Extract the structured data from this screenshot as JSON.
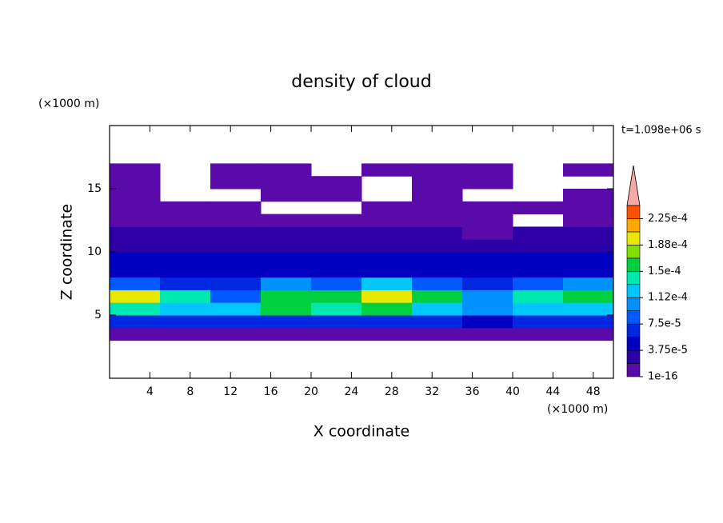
{
  "chart_data": {
    "type": "contour",
    "title": "density of cloud",
    "x_label": "X coordinate",
    "y_label": "Z coordinate",
    "x_unit": "(×1000 m)",
    "y_unit": "(×1000 m)",
    "annotation": "t=1.098e+06 s",
    "xlim": [
      0,
      50
    ],
    "ylim": [
      0,
      20
    ],
    "xticks": [
      4,
      8,
      12,
      16,
      20,
      24,
      28,
      32,
      36,
      40,
      44,
      48
    ],
    "yticks": [
      5,
      10,
      15
    ],
    "x_edges": [
      0,
      5,
      10,
      15,
      20,
      25,
      30,
      35,
      40,
      45,
      50
    ],
    "z_edges": [
      3,
      4,
      5,
      6,
      7,
      8,
      9,
      10,
      11,
      12,
      13,
      14,
      15,
      16,
      17
    ],
    "field": [
      [
        1e-05,
        1e-05,
        1e-05,
        1e-05,
        1e-05,
        1e-05,
        1e-05,
        1e-05,
        1e-05,
        1e-05
      ],
      [
        6e-05,
        6e-05,
        6e-05,
        6e-05,
        6e-05,
        6e-05,
        6e-05,
        5e-05,
        6e-05,
        6e-05
      ],
      [
        0.00014,
        0.00012,
        0.00012,
        0.00015,
        0.00014,
        0.00016,
        0.00012,
        0.0001,
        0.00012,
        0.00013
      ],
      [
        0.0002,
        0.00014,
        8e-05,
        0.00016,
        0.00016,
        0.0002,
        0.00015,
        0.0001,
        0.00014,
        0.00016
      ],
      [
        9e-05,
        7e-05,
        6e-05,
        0.0001,
        8e-05,
        0.00012,
        8e-05,
        6e-05,
        8e-05,
        0.0001
      ],
      [
        5e-05,
        5e-05,
        5e-05,
        5e-05,
        5e-05,
        5e-05,
        5e-05,
        5e-05,
        5e-05,
        5e-05
      ],
      [
        4e-05,
        4e-05,
        4e-05,
        4e-05,
        4e-05,
        4e-05,
        4e-05,
        4e-05,
        4e-05,
        4e-05
      ],
      [
        3e-05,
        3e-05,
        2e-05,
        3e-05,
        3e-05,
        3e-05,
        3e-05,
        2e-05,
        3e-05,
        3e-05
      ],
      [
        2e-05,
        2e-05,
        2e-05,
        2e-05,
        2e-05,
        2e-05,
        2e-05,
        1e-05,
        2e-05,
        2e-05
      ],
      [
        1e-05,
        1e-05,
        1e-05,
        1e-05,
        1e-05,
        1e-05,
        1e-05,
        1e-05,
        null,
        1e-05
      ],
      [
        1e-05,
        1e-05,
        1e-05,
        null,
        null,
        1e-05,
        1e-05,
        1e-05,
        1e-05,
        1e-05
      ],
      [
        1e-05,
        null,
        null,
        1e-05,
        1e-05,
        null,
        1e-05,
        null,
        null,
        1e-05
      ],
      [
        1e-05,
        null,
        1e-05,
        1e-05,
        1e-05,
        null,
        1e-05,
        1e-05,
        null,
        null
      ],
      [
        1e-05,
        null,
        1e-05,
        1e-05,
        null,
        1e-05,
        1e-05,
        1e-05,
        null,
        1e-05
      ]
    ],
    "levels": [
      1e-16,
      1.875e-05,
      3.75e-05,
      5.625e-05,
      7.5e-05,
      9.375e-05,
      0.0001125,
      0.00013125,
      0.00015,
      0.00016875,
      0.0001875,
      0.00020625,
      0.000225,
      0.00024375
    ],
    "colors": [
      "#5a0aa8",
      "#2c00a6",
      "#0000c0",
      "#0028e0",
      "#0058ff",
      "#0090ff",
      "#00c8ff",
      "#00e8b0",
      "#00d040",
      "#80e000",
      "#e8e800",
      "#ffa800",
      "#ff5000"
    ],
    "extend_color": "#f4a8a8",
    "colorbar_ticks": [
      {
        "value": 1e-16,
        "label": "1e-16"
      },
      {
        "value": 3.75e-05,
        "label": "3.75e-5"
      },
      {
        "value": 7.5e-05,
        "label": "7.5e-5"
      },
      {
        "value": 0.0001125,
        "label": "1.12e-4"
      },
      {
        "value": 0.00015,
        "label": "1.5e-4"
      },
      {
        "value": 0.0001875,
        "label": "1.88e-4"
      },
      {
        "value": 0.000225,
        "label": "2.25e-4"
      }
    ]
  }
}
